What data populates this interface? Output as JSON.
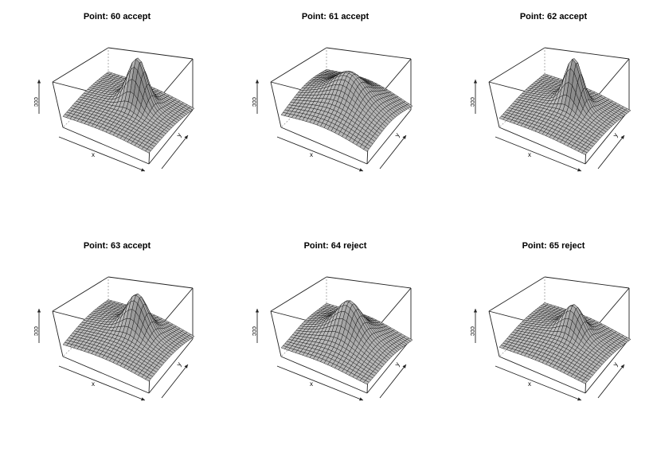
{
  "chart_data": [
    {
      "type": "surface",
      "title": "Point: 60 accept",
      "xlabel": "x",
      "ylabel": "y",
      "zlabel": "ccc",
      "surface": {
        "peak": [
          0.55,
          0.6
        ],
        "peak_height": 1.0,
        "peak_width": 0.1,
        "base_height": 0.3,
        "base_width": 0.45
      }
    },
    {
      "type": "surface",
      "title": "Point: 61 accept",
      "xlabel": "x",
      "ylabel": "y",
      "zlabel": "ccc",
      "surface": {
        "peak": [
          0.5,
          0.55
        ],
        "peak_height": 0.35,
        "peak_width": 0.14,
        "base_height": 0.65,
        "base_width": 0.4
      }
    },
    {
      "type": "surface",
      "title": "Point: 62 accept",
      "xlabel": "x",
      "ylabel": "y",
      "zlabel": "ccc",
      "surface": {
        "peak": [
          0.55,
          0.6
        ],
        "peak_height": 1.0,
        "peak_width": 0.09,
        "base_height": 0.3,
        "base_width": 0.35
      }
    },
    {
      "type": "surface",
      "title": "Point: 63 accept",
      "xlabel": "x",
      "ylabel": "y",
      "zlabel": "ccc",
      "surface": {
        "peak": [
          0.55,
          0.6
        ],
        "peak_height": 0.75,
        "peak_width": 0.11,
        "base_height": 0.4,
        "base_width": 0.45
      }
    },
    {
      "type": "surface",
      "title": "Point: 64 reject",
      "xlabel": "x",
      "ylabel": "y",
      "zlabel": "ccc",
      "surface": {
        "peak": [
          0.5,
          0.55
        ],
        "peak_height": 0.5,
        "peak_width": 0.12,
        "base_height": 0.5,
        "base_width": 0.3
      }
    },
    {
      "type": "surface",
      "title": "Point: 65 reject",
      "xlabel": "x",
      "ylabel": "y",
      "zlabel": "ccc",
      "surface": {
        "peak": [
          0.55,
          0.6
        ],
        "peak_height": 0.55,
        "peak_width": 0.1,
        "base_height": 0.35,
        "base_width": 0.35
      }
    }
  ]
}
